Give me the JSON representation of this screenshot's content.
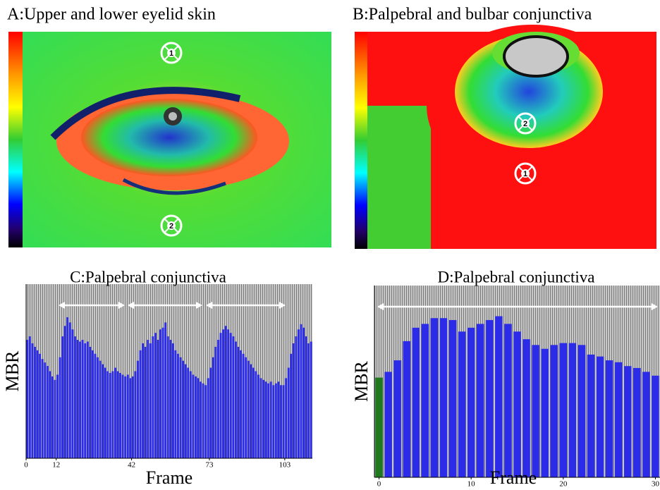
{
  "images": [
    {
      "title": "A:Upper and lower eyelid skin",
      "markers": [
        "1",
        "2"
      ]
    },
    {
      "title": "B:Palpebral and bulbar conjunctiva",
      "markers": [
        "2",
        "1"
      ]
    }
  ],
  "chart_data": [
    {
      "type": "bar",
      "title": "C:Palpebral conjunctiva",
      "xlabel": "Frame",
      "ylabel": "MBR",
      "color": "#2b2be8",
      "xlim": [
        0,
        114
      ],
      "xticks": [
        0,
        12,
        42,
        73,
        103
      ],
      "ylim": [
        0,
        100
      ],
      "values": [
        68,
        70,
        66,
        64,
        62,
        60,
        57,
        55,
        53,
        50,
        47,
        45,
        48,
        58,
        70,
        76,
        81,
        78,
        74,
        70,
        68,
        67,
        68,
        66,
        67,
        64,
        62,
        60,
        58,
        56,
        54,
        52,
        50,
        49,
        50,
        52,
        50,
        49,
        48,
        47,
        48,
        46,
        47,
        50,
        56,
        62,
        66,
        64,
        68,
        66,
        70,
        72,
        68,
        74,
        75,
        78,
        70,
        68,
        66,
        62,
        60,
        58,
        56,
        54,
        52,
        50,
        48,
        47,
        46,
        44,
        43,
        42,
        46,
        52,
        58,
        64,
        68,
        72,
        74,
        76,
        74,
        72,
        70,
        67,
        64,
        62,
        60,
        58,
        56,
        54,
        52,
        50,
        48,
        46,
        45,
        44,
        43,
        44,
        42,
        43,
        44,
        42,
        42,
        46,
        52,
        60,
        66,
        70,
        74,
        77,
        75,
        70,
        66,
        67
      ]
    },
    {
      "type": "bar",
      "title": "D:Palpebral conjunctiva",
      "xlabel": "Frame",
      "ylabel": "MBR",
      "color": "#2b2be8",
      "first_color": "#1f7a1f",
      "xlim": [
        -0.5,
        30.5
      ],
      "xticks": [
        0,
        10,
        20,
        30
      ],
      "ylim": [
        0,
        100
      ],
      "values": [
        52,
        55,
        61,
        71,
        78,
        80,
        83,
        83,
        82,
        76,
        78,
        80,
        82,
        84,
        80,
        76,
        72,
        69,
        67,
        69,
        70,
        70,
        69,
        64,
        63,
        61,
        60,
        58,
        57,
        55,
        53
      ]
    }
  ]
}
